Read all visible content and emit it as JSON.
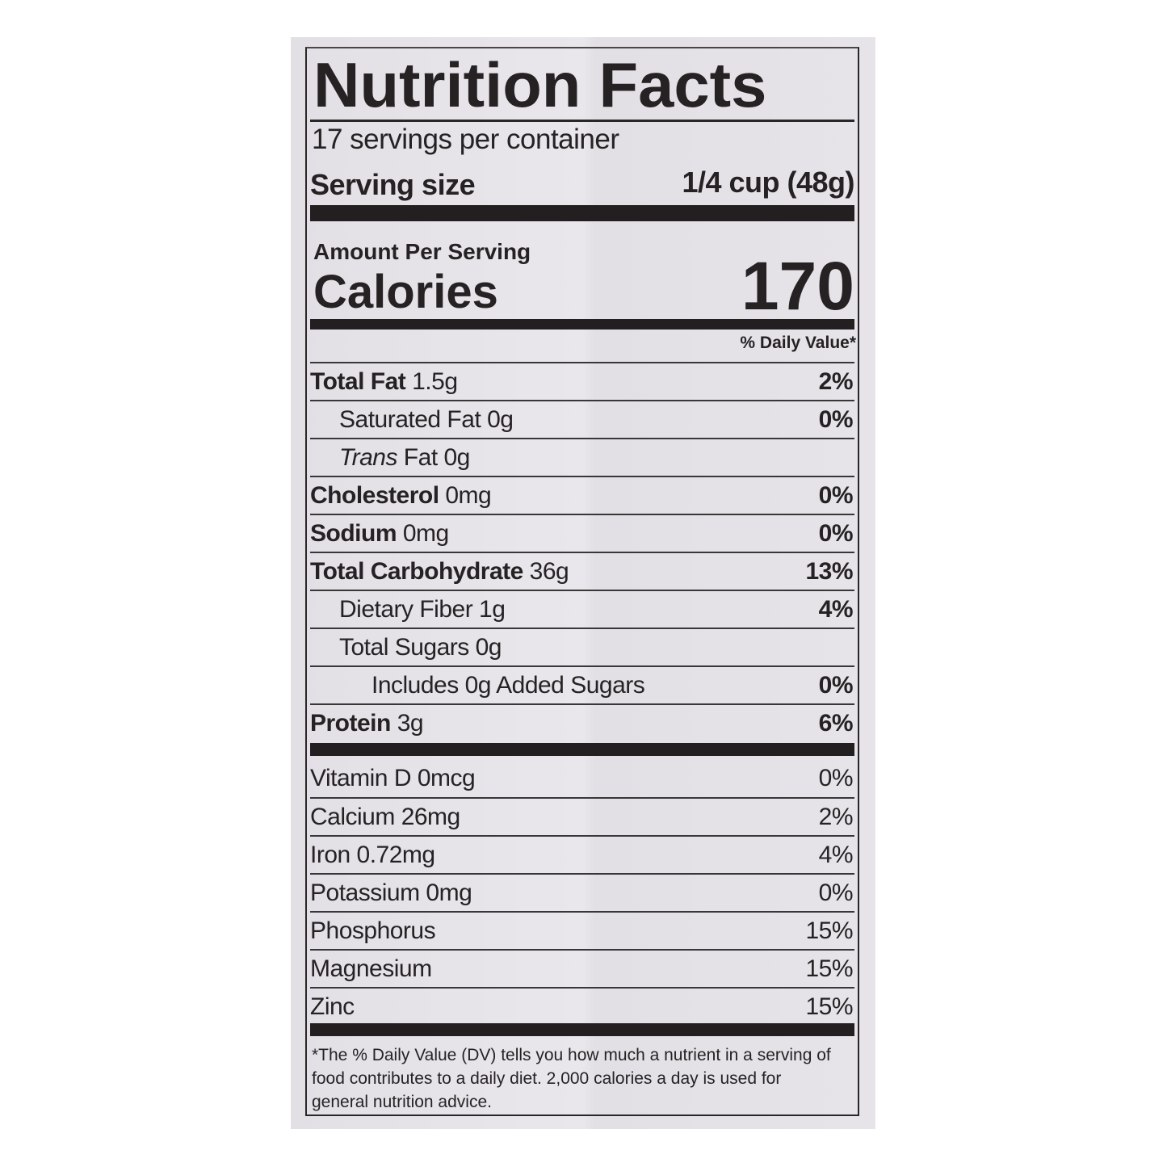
{
  "label": {
    "title": "Nutrition Facts",
    "servings_per_container": "17 servings per container",
    "serving_size_label": "Serving size",
    "serving_size_value": "1/4 cup (48g)",
    "amount_per_serving": "Amount Per Serving",
    "calories_label": "Calories",
    "calories_value": "170",
    "daily_value_header": "% Daily Value*",
    "nutrients": [
      {
        "name": "Total Fat",
        "amount": " 1.5g",
        "dv": "2%",
        "bold": true,
        "indent": 0
      },
      {
        "name": "Saturated Fat 0g",
        "amount": "",
        "dv": "0%",
        "bold": false,
        "indent": 1
      },
      {
        "name": "Trans",
        "amount": " Fat 0g",
        "dv": "",
        "bold": false,
        "italic": true,
        "indent": 1
      },
      {
        "name": "Cholesterol",
        "amount": " 0mg",
        "dv": "0%",
        "bold": true,
        "indent": 0
      },
      {
        "name": "Sodium",
        "amount": " 0mg",
        "dv": "0%",
        "bold": true,
        "indent": 0
      },
      {
        "name": "Total Carbohydrate",
        "amount": " 36g",
        "dv": "13%",
        "bold": true,
        "indent": 0
      },
      {
        "name": "Dietary Fiber 1g",
        "amount": "",
        "dv": "4%",
        "bold": false,
        "indent": 1
      },
      {
        "name": "Total Sugars 0g",
        "amount": "",
        "dv": "",
        "bold": false,
        "indent": 1
      },
      {
        "name": "Includes 0g Added Sugars",
        "amount": "",
        "dv": "0%",
        "bold": false,
        "indent": 2
      },
      {
        "name": "Protein",
        "amount": " 3g",
        "dv": "6%",
        "bold": true,
        "indent": 0
      }
    ],
    "vitamins": [
      {
        "name": "Vitamin D 0mcg",
        "dv": "0%"
      },
      {
        "name": "Calcium 26mg",
        "dv": "2%"
      },
      {
        "name": "Iron 0.72mg",
        "dv": "4%"
      },
      {
        "name": "Potassium 0mg",
        "dv": "0%"
      },
      {
        "name": "Phosphorus",
        "dv": "15%"
      },
      {
        "name": "Magnesium",
        "dv": "15%"
      },
      {
        "name": "Zinc",
        "dv": "15%"
      }
    ],
    "footnote": "*The % Daily Value (DV) tells you how much a nutrient in a serving of food contributes to a daily diet. 2,000 calories a day is used for general nutrition advice."
  }
}
